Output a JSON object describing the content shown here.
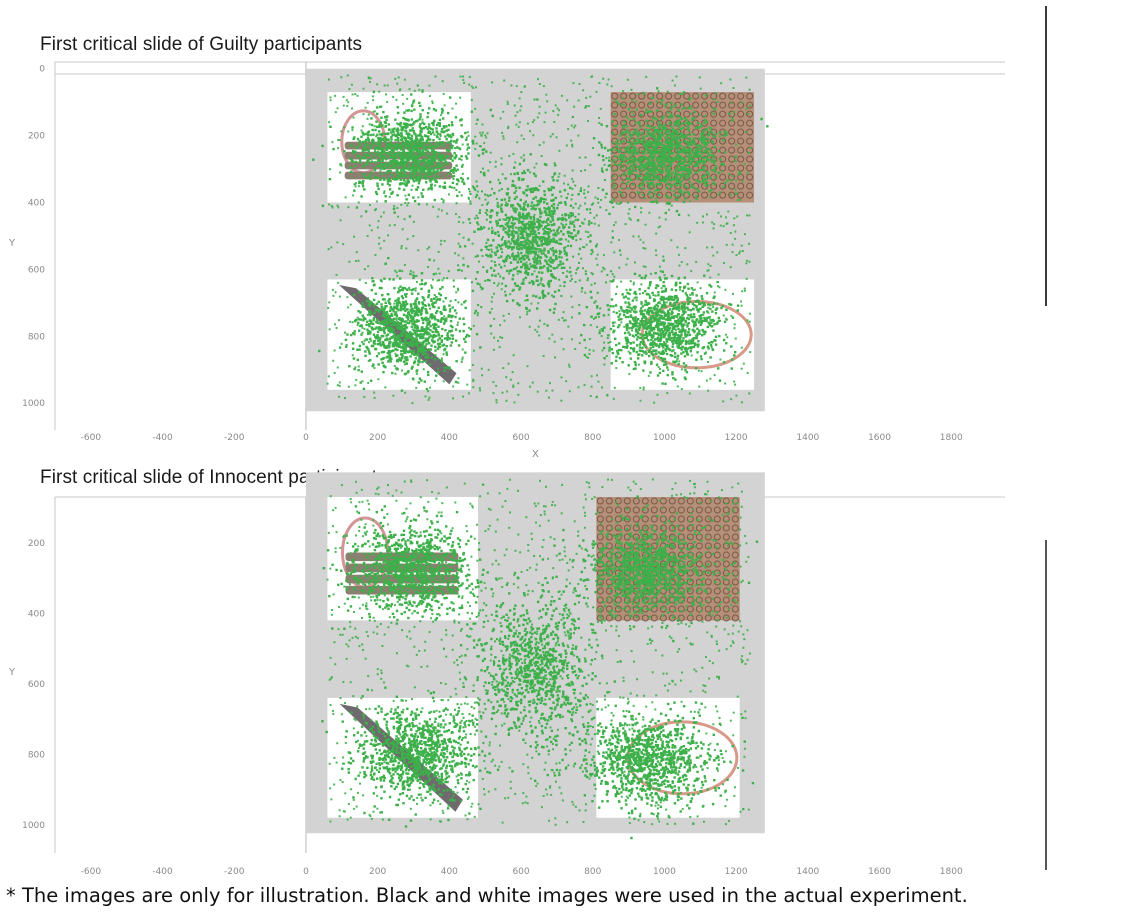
{
  "chart_data": [
    {
      "type": "scatter",
      "title": "First critical slide of Guilty participants",
      "xlabel": "X",
      "ylabel": "Y",
      "xlim": [
        -700,
        1950
      ],
      "ylim": [
        1080,
        -20
      ],
      "x_ticks": [
        "-600",
        "-400",
        "-200",
        "0",
        "200",
        "400",
        "600",
        "800",
        "1000",
        "1200",
        "1400",
        "1600",
        "1800"
      ],
      "y_ticks": [
        "0",
        "200",
        "400",
        "600",
        "800",
        "1000"
      ],
      "slide_area": {
        "x": [
          0,
          1280
        ],
        "y": [
          0,
          1024
        ]
      },
      "stimulus_images": [
        {
          "name": "rope-image",
          "x": [
            60,
            460
          ],
          "y": [
            70,
            400
          ]
        },
        {
          "name": "pattern-image",
          "x": [
            850,
            1250
          ],
          "y": [
            70,
            400
          ]
        },
        {
          "name": "knife-image",
          "x": [
            60,
            460
          ],
          "y": [
            630,
            960
          ]
        },
        {
          "name": "necklace-image",
          "x": [
            850,
            1250
          ],
          "y": [
            630,
            960
          ]
        }
      ],
      "fixation_clusters": [
        {
          "region": "top-left",
          "cx": 290,
          "cy": 250,
          "spread": [
            140,
            110
          ]
        },
        {
          "region": "top-right",
          "cx": 1010,
          "cy": 255,
          "spread": [
            140,
            110
          ]
        },
        {
          "region": "center",
          "cx": 630,
          "cy": 500,
          "spread": [
            120,
            170
          ]
        },
        {
          "region": "bottom-left",
          "cx": 280,
          "cy": 780,
          "spread": [
            130,
            110
          ]
        },
        {
          "region": "bottom-right",
          "cx": 1000,
          "cy": 770,
          "spread": [
            140,
            110
          ]
        }
      ],
      "series": [
        {
          "color": "#3db04a"
        }
      ],
      "grid": false
    },
    {
      "type": "scatter",
      "title": "First critical slide of Innocent participants",
      "xlabel": "",
      "ylabel": "Y",
      "xlim": [
        -700,
        1950
      ],
      "ylim": [
        1080,
        70
      ],
      "x_ticks": [
        "-600",
        "-400",
        "-200",
        "0",
        "200",
        "400",
        "600",
        "800",
        "1000",
        "1200",
        "1400",
        "1600",
        "1800"
      ],
      "y_ticks": [
        "200",
        "400",
        "600",
        "800",
        "1000"
      ],
      "slide_area": {
        "x": [
          0,
          1280
        ],
        "y": [
          0,
          1024
        ]
      },
      "stimulus_images": [
        {
          "name": "rope-image",
          "x": [
            60,
            480
          ],
          "y": [
            70,
            420
          ]
        },
        {
          "name": "pattern-image",
          "x": [
            810,
            1210
          ],
          "y": [
            70,
            420
          ]
        },
        {
          "name": "knife-image",
          "x": [
            60,
            480
          ],
          "y": [
            640,
            980
          ]
        },
        {
          "name": "necklace-image",
          "x": [
            810,
            1210
          ],
          "y": [
            640,
            980
          ]
        }
      ],
      "fixation_clusters": [
        {
          "region": "top-left",
          "cx": 290,
          "cy": 270,
          "spread": [
            150,
            110
          ]
        },
        {
          "region": "top-right",
          "cx": 960,
          "cy": 280,
          "spread": [
            150,
            110
          ]
        },
        {
          "region": "center",
          "cx": 640,
          "cy": 560,
          "spread": [
            140,
            200
          ]
        },
        {
          "region": "bottom-left",
          "cx": 300,
          "cy": 800,
          "spread": [
            140,
            110
          ]
        },
        {
          "region": "bottom-right",
          "cx": 960,
          "cy": 820,
          "spread": [
            150,
            110
          ]
        }
      ],
      "series": [
        {
          "color": "#3db04a"
        }
      ],
      "grid": false
    }
  ],
  "footnote": "* The images are only for illustration. Black and white images were used in the actual experiment.",
  "colors": {
    "background": "#ffffff",
    "slide_gray": "#d3d3d3",
    "points": "#3db04a",
    "axis": "#c8c8c8",
    "tick_text": "#8a8a8a"
  }
}
